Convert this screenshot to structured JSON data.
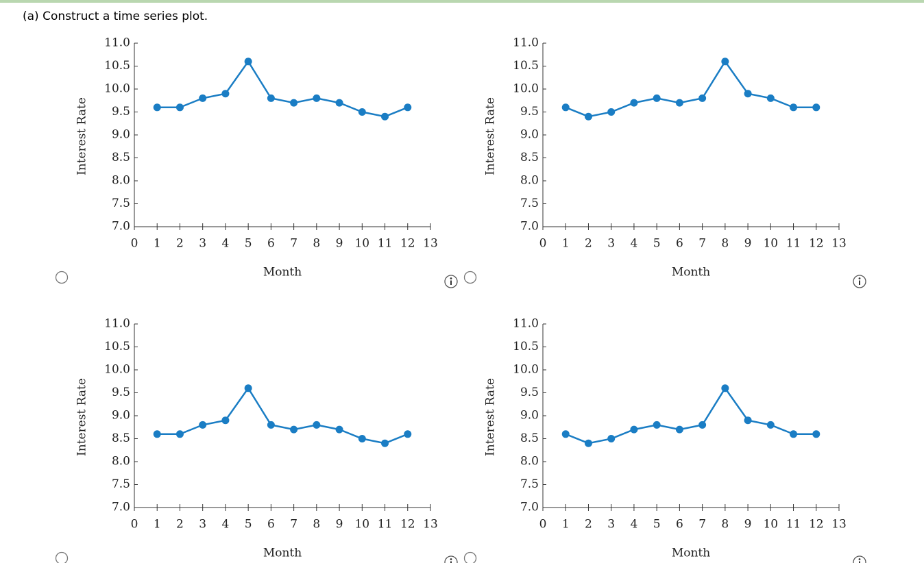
{
  "question": "(a) Construct a time series plot.",
  "chart_data": [
    {
      "type": "line",
      "x_label": "Month",
      "y_label": "Interest Rate",
      "color": "#1a7dc4",
      "x": [
        1,
        2,
        3,
        4,
        5,
        6,
        7,
        8,
        9,
        10,
        11,
        12
      ],
      "values": [
        9.6,
        9.6,
        9.8,
        9.9,
        10.6,
        9.8,
        9.7,
        9.8,
        9.7,
        9.5,
        9.4,
        9.6
      ],
      "xlim": [
        0,
        13
      ],
      "xticks": [
        0,
        1,
        2,
        3,
        4,
        5,
        6,
        7,
        8,
        9,
        10,
        11,
        12,
        13
      ],
      "ylim": [
        7,
        11
      ],
      "yticks": [
        {
          "value": 7,
          "label": "7.0"
        },
        7.5,
        {
          "value": 8,
          "label": "8.0"
        },
        8.5,
        {
          "value": 9,
          "label": "9.0"
        },
        9.5,
        {
          "value": 10,
          "label": "10.0"
        },
        10.5,
        {
          "value": 11,
          "label": "11.0"
        }
      ]
    },
    {
      "type": "line",
      "x_label": "Month",
      "y_label": "Interest Rate",
      "color": "#1a7dc4",
      "x": [
        1,
        2,
        3,
        4,
        5,
        6,
        7,
        8,
        9,
        10,
        11,
        12
      ],
      "values": [
        9.6,
        9.4,
        9.5,
        9.7,
        9.8,
        9.7,
        9.8,
        10.6,
        9.9,
        9.8,
        9.6,
        9.6
      ],
      "xlim": [
        0,
        13
      ],
      "xticks": [
        0,
        1,
        2,
        3,
        4,
        5,
        6,
        7,
        8,
        9,
        10,
        11,
        12,
        13
      ],
      "ylim": [
        7,
        11
      ],
      "yticks": [
        {
          "value": 7,
          "label": "7.0"
        },
        7.5,
        {
          "value": 8,
          "label": "8.0"
        },
        8.5,
        {
          "value": 9,
          "label": "9.0"
        },
        9.5,
        {
          "value": 10,
          "label": "10.0"
        },
        10.5,
        {
          "value": 11,
          "label": "11.0"
        }
      ]
    },
    {
      "type": "line",
      "x_label": "Month",
      "y_label": "Interest Rate",
      "color": "#1a7dc4",
      "x": [
        1,
        2,
        3,
        4,
        5,
        6,
        7,
        8,
        9,
        10,
        11,
        12
      ],
      "values": [
        8.6,
        8.6,
        8.8,
        8.9,
        9.6,
        8.8,
        8.7,
        8.8,
        8.7,
        8.5,
        8.4,
        8.6
      ],
      "xlim": [
        0,
        13
      ],
      "xticks": [
        0,
        1,
        2,
        3,
        4,
        5,
        6,
        7,
        8,
        9,
        10,
        11,
        12,
        13
      ],
      "ylim": [
        7,
        11
      ],
      "yticks": [
        {
          "value": 7,
          "label": "7.0"
        },
        7.5,
        {
          "value": 8,
          "label": "8.0"
        },
        8.5,
        {
          "value": 9,
          "label": "9.0"
        },
        9.5,
        {
          "value": 10,
          "label": "10.0"
        },
        10.5,
        {
          "value": 11,
          "label": "11.0"
        }
      ]
    },
    {
      "type": "line",
      "x_label": "Month",
      "y_label": "Interest Rate",
      "color": "#1a7dc4",
      "x": [
        1,
        2,
        3,
        4,
        5,
        6,
        7,
        8,
        9,
        10,
        11,
        12
      ],
      "values": [
        8.6,
        8.4,
        8.5,
        8.7,
        8.8,
        8.7,
        8.8,
        9.6,
        8.9,
        8.8,
        8.6,
        8.6
      ],
      "xlim": [
        0,
        13
      ],
      "xticks": [
        0,
        1,
        2,
        3,
        4,
        5,
        6,
        7,
        8,
        9,
        10,
        11,
        12,
        13
      ],
      "ylim": [
        7,
        11
      ],
      "yticks": [
        {
          "value": 7,
          "label": "7.0"
        },
        7.5,
        {
          "value": 8,
          "label": "8.0"
        },
        8.5,
        {
          "value": 9,
          "label": "9.0"
        },
        9.5,
        {
          "value": 10,
          "label": "10.0"
        },
        10.5,
        {
          "value": 11,
          "label": "11.0"
        }
      ]
    }
  ]
}
